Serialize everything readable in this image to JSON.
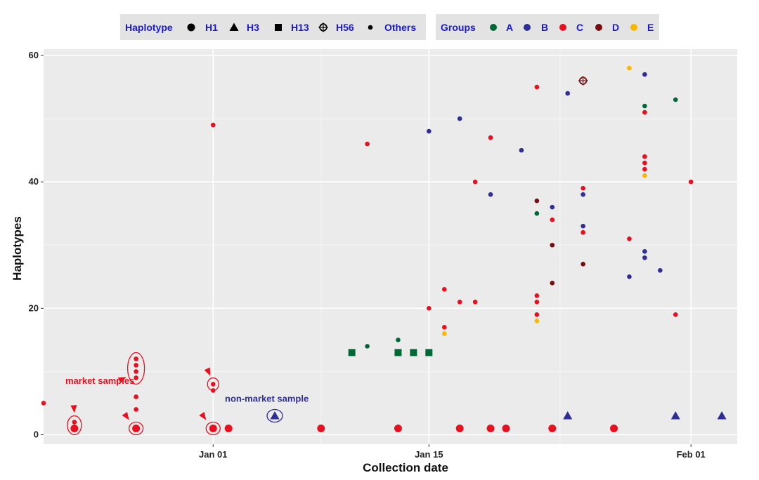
{
  "chart_data": {
    "type": "scatter",
    "xlabel": "Collection date",
    "ylabel": "Haplotypes",
    "x_axis": {
      "type": "date",
      "min": "2019-12-21",
      "max": "2020-02-04",
      "ticks": [
        {
          "date": "2020-01-01",
          "label": "Jan 01"
        },
        {
          "date": "2020-01-15",
          "label": "Jan 15"
        },
        {
          "date": "2020-02-01",
          "label": "Feb 01"
        }
      ]
    },
    "y_axis": {
      "min": -1.5,
      "max": 61,
      "ticks": [
        0,
        20,
        40,
        60
      ]
    },
    "grid": true,
    "legend_placement": "top",
    "haplotype_legend": {
      "title": "Haplotype",
      "items": [
        {
          "label": "H1",
          "shape": "big-circle"
        },
        {
          "label": "H3",
          "shape": "triangle"
        },
        {
          "label": "H13",
          "shape": "square"
        },
        {
          "label": "H56",
          "shape": "diamond-plus"
        },
        {
          "label": "Others",
          "shape": "small-circle"
        }
      ]
    },
    "group_legend": {
      "title": "Groups",
      "items": [
        {
          "label": "A",
          "color": "#006837"
        },
        {
          "label": "B",
          "color": "#2e2e96"
        },
        {
          "label": "C",
          "color": "#e8101e"
        },
        {
          "label": "D",
          "color": "#7a0c10"
        },
        {
          "label": "E",
          "color": "#f7b800"
        }
      ]
    },
    "points": [
      {
        "date": "2019-12-21",
        "y": 5,
        "group": "C",
        "hap": "Others"
      },
      {
        "date": "2019-12-23",
        "y": 2,
        "group": "C",
        "hap": "Others"
      },
      {
        "date": "2019-12-23",
        "y": 1,
        "group": "C",
        "hap": "H1"
      },
      {
        "date": "2019-12-27",
        "y": 12,
        "group": "C",
        "hap": "Others"
      },
      {
        "date": "2019-12-27",
        "y": 11,
        "group": "C",
        "hap": "Others"
      },
      {
        "date": "2019-12-27",
        "y": 10,
        "group": "C",
        "hap": "Others"
      },
      {
        "date": "2019-12-27",
        "y": 9,
        "group": "C",
        "hap": "Others"
      },
      {
        "date": "2019-12-27",
        "y": 6,
        "group": "C",
        "hap": "Others"
      },
      {
        "date": "2019-12-27",
        "y": 4,
        "group": "C",
        "hap": "Others"
      },
      {
        "date": "2019-12-27",
        "y": 1,
        "group": "C",
        "hap": "H1"
      },
      {
        "date": "2020-01-01",
        "y": 49,
        "group": "C",
        "hap": "Others"
      },
      {
        "date": "2020-01-01",
        "y": 8,
        "group": "C",
        "hap": "Others"
      },
      {
        "date": "2020-01-01",
        "y": 7,
        "group": "C",
        "hap": "Others"
      },
      {
        "date": "2020-01-01",
        "y": 1,
        "group": "C",
        "hap": "H1"
      },
      {
        "date": "2020-01-02",
        "y": 1,
        "group": "C",
        "hap": "H1"
      },
      {
        "date": "2020-01-05",
        "y": 3,
        "group": "B",
        "hap": "H3"
      },
      {
        "date": "2020-01-08",
        "y": 1,
        "group": "C",
        "hap": "H1"
      },
      {
        "date": "2020-01-10",
        "y": 13,
        "group": "A",
        "hap": "H13"
      },
      {
        "date": "2020-01-11",
        "y": 46,
        "group": "C",
        "hap": "Others"
      },
      {
        "date": "2020-01-11",
        "y": 14,
        "group": "A",
        "hap": "Others"
      },
      {
        "date": "2020-01-13",
        "y": 15,
        "group": "A",
        "hap": "Others"
      },
      {
        "date": "2020-01-13",
        "y": 13,
        "group": "A",
        "hap": "H13"
      },
      {
        "date": "2020-01-13",
        "y": 1,
        "group": "C",
        "hap": "H1"
      },
      {
        "date": "2020-01-14",
        "y": 13,
        "group": "A",
        "hap": "H13"
      },
      {
        "date": "2020-01-15",
        "y": 48,
        "group": "B",
        "hap": "Others"
      },
      {
        "date": "2020-01-15",
        "y": 20,
        "group": "C",
        "hap": "Others"
      },
      {
        "date": "2020-01-15",
        "y": 13,
        "group": "A",
        "hap": "H13"
      },
      {
        "date": "2020-01-16",
        "y": 23,
        "group": "C",
        "hap": "Others"
      },
      {
        "date": "2020-01-16",
        "y": 17,
        "group": "C",
        "hap": "Others"
      },
      {
        "date": "2020-01-16",
        "y": 16,
        "group": "E",
        "hap": "Others"
      },
      {
        "date": "2020-01-17",
        "y": 50,
        "group": "B",
        "hap": "Others"
      },
      {
        "date": "2020-01-17",
        "y": 21,
        "group": "C",
        "hap": "Others"
      },
      {
        "date": "2020-01-17",
        "y": 1,
        "group": "C",
        "hap": "H1"
      },
      {
        "date": "2020-01-18",
        "y": 40,
        "group": "C",
        "hap": "Others"
      },
      {
        "date": "2020-01-18",
        "y": 21,
        "group": "C",
        "hap": "Others"
      },
      {
        "date": "2020-01-19",
        "y": 47,
        "group": "C",
        "hap": "Others"
      },
      {
        "date": "2020-01-19",
        "y": 38,
        "group": "B",
        "hap": "Others"
      },
      {
        "date": "2020-01-19",
        "y": 1,
        "group": "C",
        "hap": "H1"
      },
      {
        "date": "2020-01-20",
        "y": 1,
        "group": "C",
        "hap": "H1"
      },
      {
        "date": "2020-01-21",
        "y": 45,
        "group": "B",
        "hap": "Others"
      },
      {
        "date": "2020-01-22",
        "y": 55,
        "group": "C",
        "hap": "Others"
      },
      {
        "date": "2020-01-22",
        "y": 37,
        "group": "D",
        "hap": "Others"
      },
      {
        "date": "2020-01-22",
        "y": 35,
        "group": "A",
        "hap": "Others"
      },
      {
        "date": "2020-01-22",
        "y": 22,
        "group": "C",
        "hap": "Others"
      },
      {
        "date": "2020-01-22",
        "y": 21,
        "group": "C",
        "hap": "Others"
      },
      {
        "date": "2020-01-22",
        "y": 19,
        "group": "C",
        "hap": "Others"
      },
      {
        "date": "2020-01-22",
        "y": 18,
        "group": "E",
        "hap": "Others"
      },
      {
        "date": "2020-01-23",
        "y": 36,
        "group": "B",
        "hap": "Others"
      },
      {
        "date": "2020-01-23",
        "y": 34,
        "group": "C",
        "hap": "Others"
      },
      {
        "date": "2020-01-23",
        "y": 30,
        "group": "D",
        "hap": "Others"
      },
      {
        "date": "2020-01-23",
        "y": 24,
        "group": "D",
        "hap": "Others"
      },
      {
        "date": "2020-01-23",
        "y": 1,
        "group": "C",
        "hap": "H1"
      },
      {
        "date": "2020-01-24",
        "y": 54,
        "group": "B",
        "hap": "Others"
      },
      {
        "date": "2020-01-24",
        "y": 3,
        "group": "B",
        "hap": "H3"
      },
      {
        "date": "2020-01-25",
        "y": 56,
        "group": "D",
        "hap": "H56"
      },
      {
        "date": "2020-01-25",
        "y": 39,
        "group": "C",
        "hap": "Others"
      },
      {
        "date": "2020-01-25",
        "y": 38,
        "group": "B",
        "hap": "Others"
      },
      {
        "date": "2020-01-25",
        "y": 33,
        "group": "B",
        "hap": "Others"
      },
      {
        "date": "2020-01-25",
        "y": 32,
        "group": "C",
        "hap": "Others"
      },
      {
        "date": "2020-01-25",
        "y": 27,
        "group": "D",
        "hap": "Others"
      },
      {
        "date": "2020-01-27",
        "y": 1,
        "group": "C",
        "hap": "H1"
      },
      {
        "date": "2020-01-28",
        "y": 58,
        "group": "E",
        "hap": "Others"
      },
      {
        "date": "2020-01-28",
        "y": 31,
        "group": "C",
        "hap": "Others"
      },
      {
        "date": "2020-01-28",
        "y": 25,
        "group": "B",
        "hap": "Others"
      },
      {
        "date": "2020-01-29",
        "y": 57,
        "group": "B",
        "hap": "Others"
      },
      {
        "date": "2020-01-29",
        "y": 52,
        "group": "A",
        "hap": "Others"
      },
      {
        "date": "2020-01-29",
        "y": 51,
        "group": "C",
        "hap": "Others"
      },
      {
        "date": "2020-01-29",
        "y": 44,
        "group": "C",
        "hap": "Others"
      },
      {
        "date": "2020-01-29",
        "y": 43,
        "group": "C",
        "hap": "Others"
      },
      {
        "date": "2020-01-29",
        "y": 42,
        "group": "C",
        "hap": "Others"
      },
      {
        "date": "2020-01-29",
        "y": 41,
        "group": "E",
        "hap": "Others"
      },
      {
        "date": "2020-01-29",
        "y": 29,
        "group": "B",
        "hap": "Others"
      },
      {
        "date": "2020-01-29",
        "y": 28,
        "group": "B",
        "hap": "Others"
      },
      {
        "date": "2020-01-30",
        "y": 26,
        "group": "B",
        "hap": "Others"
      },
      {
        "date": "2020-01-31",
        "y": 53,
        "group": "A",
        "hap": "Others"
      },
      {
        "date": "2020-01-31",
        "y": 19,
        "group": "C",
        "hap": "Others"
      },
      {
        "date": "2020-01-31",
        "y": 3,
        "group": "B",
        "hap": "H3"
      },
      {
        "date": "2020-02-01",
        "y": 40,
        "group": "C",
        "hap": "Others"
      },
      {
        "date": "2020-02-03",
        "y": 3,
        "group": "B",
        "hap": "H3"
      }
    ],
    "annotations": [
      {
        "text": "market samples",
        "color": "#e8101e"
      },
      {
        "text": "non-market sample",
        "color": "#2e2e96"
      }
    ]
  }
}
